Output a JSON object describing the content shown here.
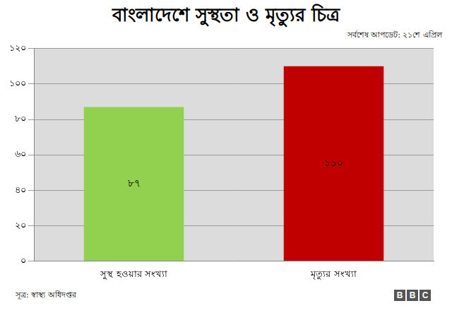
{
  "chart_data": {
    "type": "bar",
    "title": "বাংলাদেশে সুস্থতা ও মৃত্যুর চিত্র",
    "subtitle": "সর্বশেষ আপডেট: ২১শে এপ্রিল",
    "categories": [
      "সুস্থ হওয়ার সংখ্যা",
      "মৃত্যুর সংখ্যা"
    ],
    "values": [
      87,
      110
    ],
    "value_labels": [
      "৮৭",
      "১১০"
    ],
    "colors": [
      "#92d050",
      "#c00000"
    ],
    "ylim": [
      0,
      120
    ],
    "yticks": [
      {
        "value": 0,
        "label": "০"
      },
      {
        "value": 20,
        "label": "২০"
      },
      {
        "value": 40,
        "label": "৪০"
      },
      {
        "value": 60,
        "label": "৬০"
      },
      {
        "value": 80,
        "label": "৮০"
      },
      {
        "value": 100,
        "label": "১০০"
      },
      {
        "value": 120,
        "label": "১২০"
      }
    ],
    "grid": true,
    "data_labels": true,
    "source": "সূত্র: স্বাস্থ্য অধিদপ্তর",
    "logo": "BBC"
  }
}
